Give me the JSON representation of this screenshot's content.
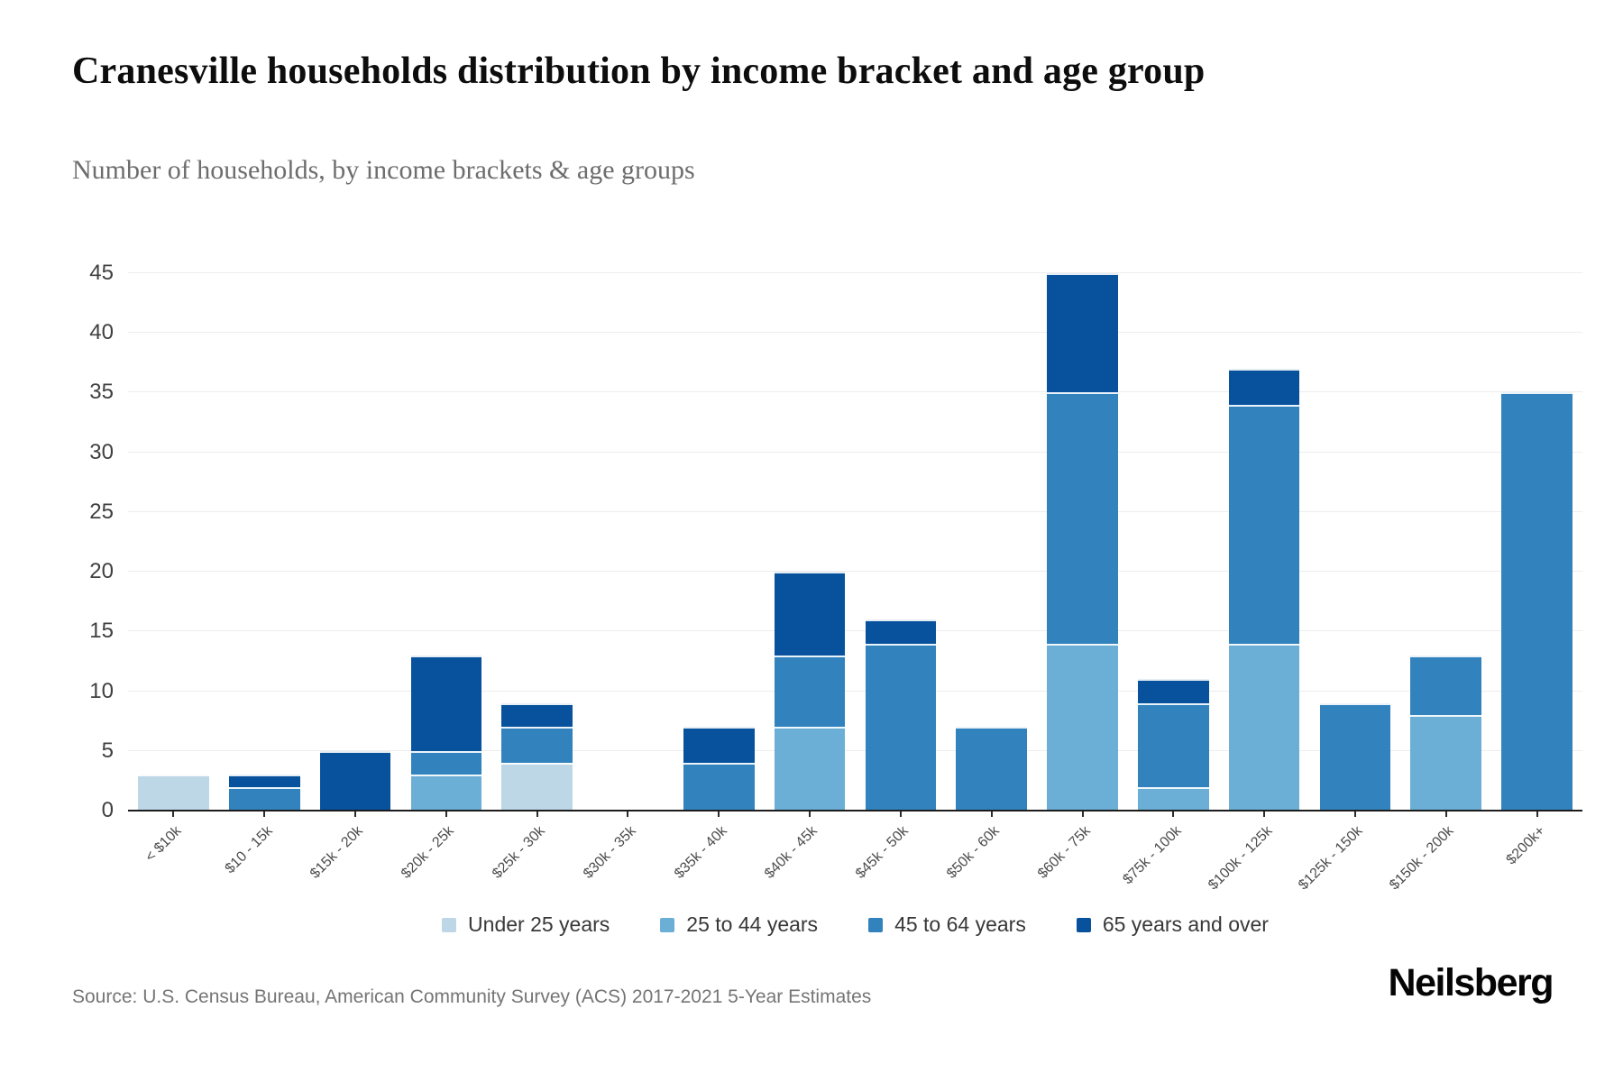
{
  "header": {
    "title": "Cranesville households distribution by income bracket and age group",
    "subtitle": "Number of households, by income brackets & age groups"
  },
  "chart_data": {
    "type": "bar",
    "stacked": true,
    "title": "Cranesville households distribution by income bracket and age group",
    "subtitle": "Number of households, by income brackets & age groups",
    "xlabel": "",
    "ylabel": "",
    "ylim": [
      0,
      45
    ],
    "yticks": [
      0,
      5,
      10,
      15,
      20,
      25,
      30,
      35,
      40,
      45
    ],
    "grid": true,
    "legend_position": "bottom",
    "categories": [
      "< $10k",
      "$10 - 15k",
      "$15k - 20k",
      "$20k - 25k",
      "$25k - 30k",
      "$30k - 35k",
      "$35k - 40k",
      "$40k - 45k",
      "$45k - 50k",
      "$50k - 60k",
      "$60k - 75k",
      "$75k - 100k",
      "$100k - 125k",
      "$125k - 150k",
      "$150k - 200k",
      "$200k+"
    ],
    "series": [
      {
        "name": "Under 25 years",
        "color": "#bdd7e7",
        "values": [
          3,
          0,
          0,
          0,
          4,
          0,
          0,
          0,
          0,
          0,
          0,
          0,
          0,
          0,
          0,
          0
        ]
      },
      {
        "name": "25 to 44 years",
        "color": "#6baed6",
        "values": [
          0,
          0,
          0,
          3,
          0,
          0,
          0,
          7,
          0,
          0,
          14,
          2,
          14,
          0,
          8,
          0
        ]
      },
      {
        "name": "45 to 64 years",
        "color": "#3182bd",
        "values": [
          0,
          2,
          0,
          2,
          3,
          0,
          4,
          6,
          14,
          7,
          21,
          7,
          20,
          9,
          5,
          35
        ]
      },
      {
        "name": "65 years and over",
        "color": "#08519c",
        "values": [
          0,
          1,
          5,
          8,
          2,
          0,
          3,
          7,
          2,
          0,
          10,
          2,
          3,
          0,
          0,
          0
        ]
      }
    ]
  },
  "colors": {
    "gridline": "#ededed",
    "axis": "#1c1c1c",
    "title": "#0d0d0d",
    "subtitle": "#6d6d6d"
  },
  "footer": {
    "source": "Source: U.S. Census Bureau, American Community Survey (ACS) 2017-2021 5-Year Estimates",
    "logo": "Neilsberg"
  }
}
